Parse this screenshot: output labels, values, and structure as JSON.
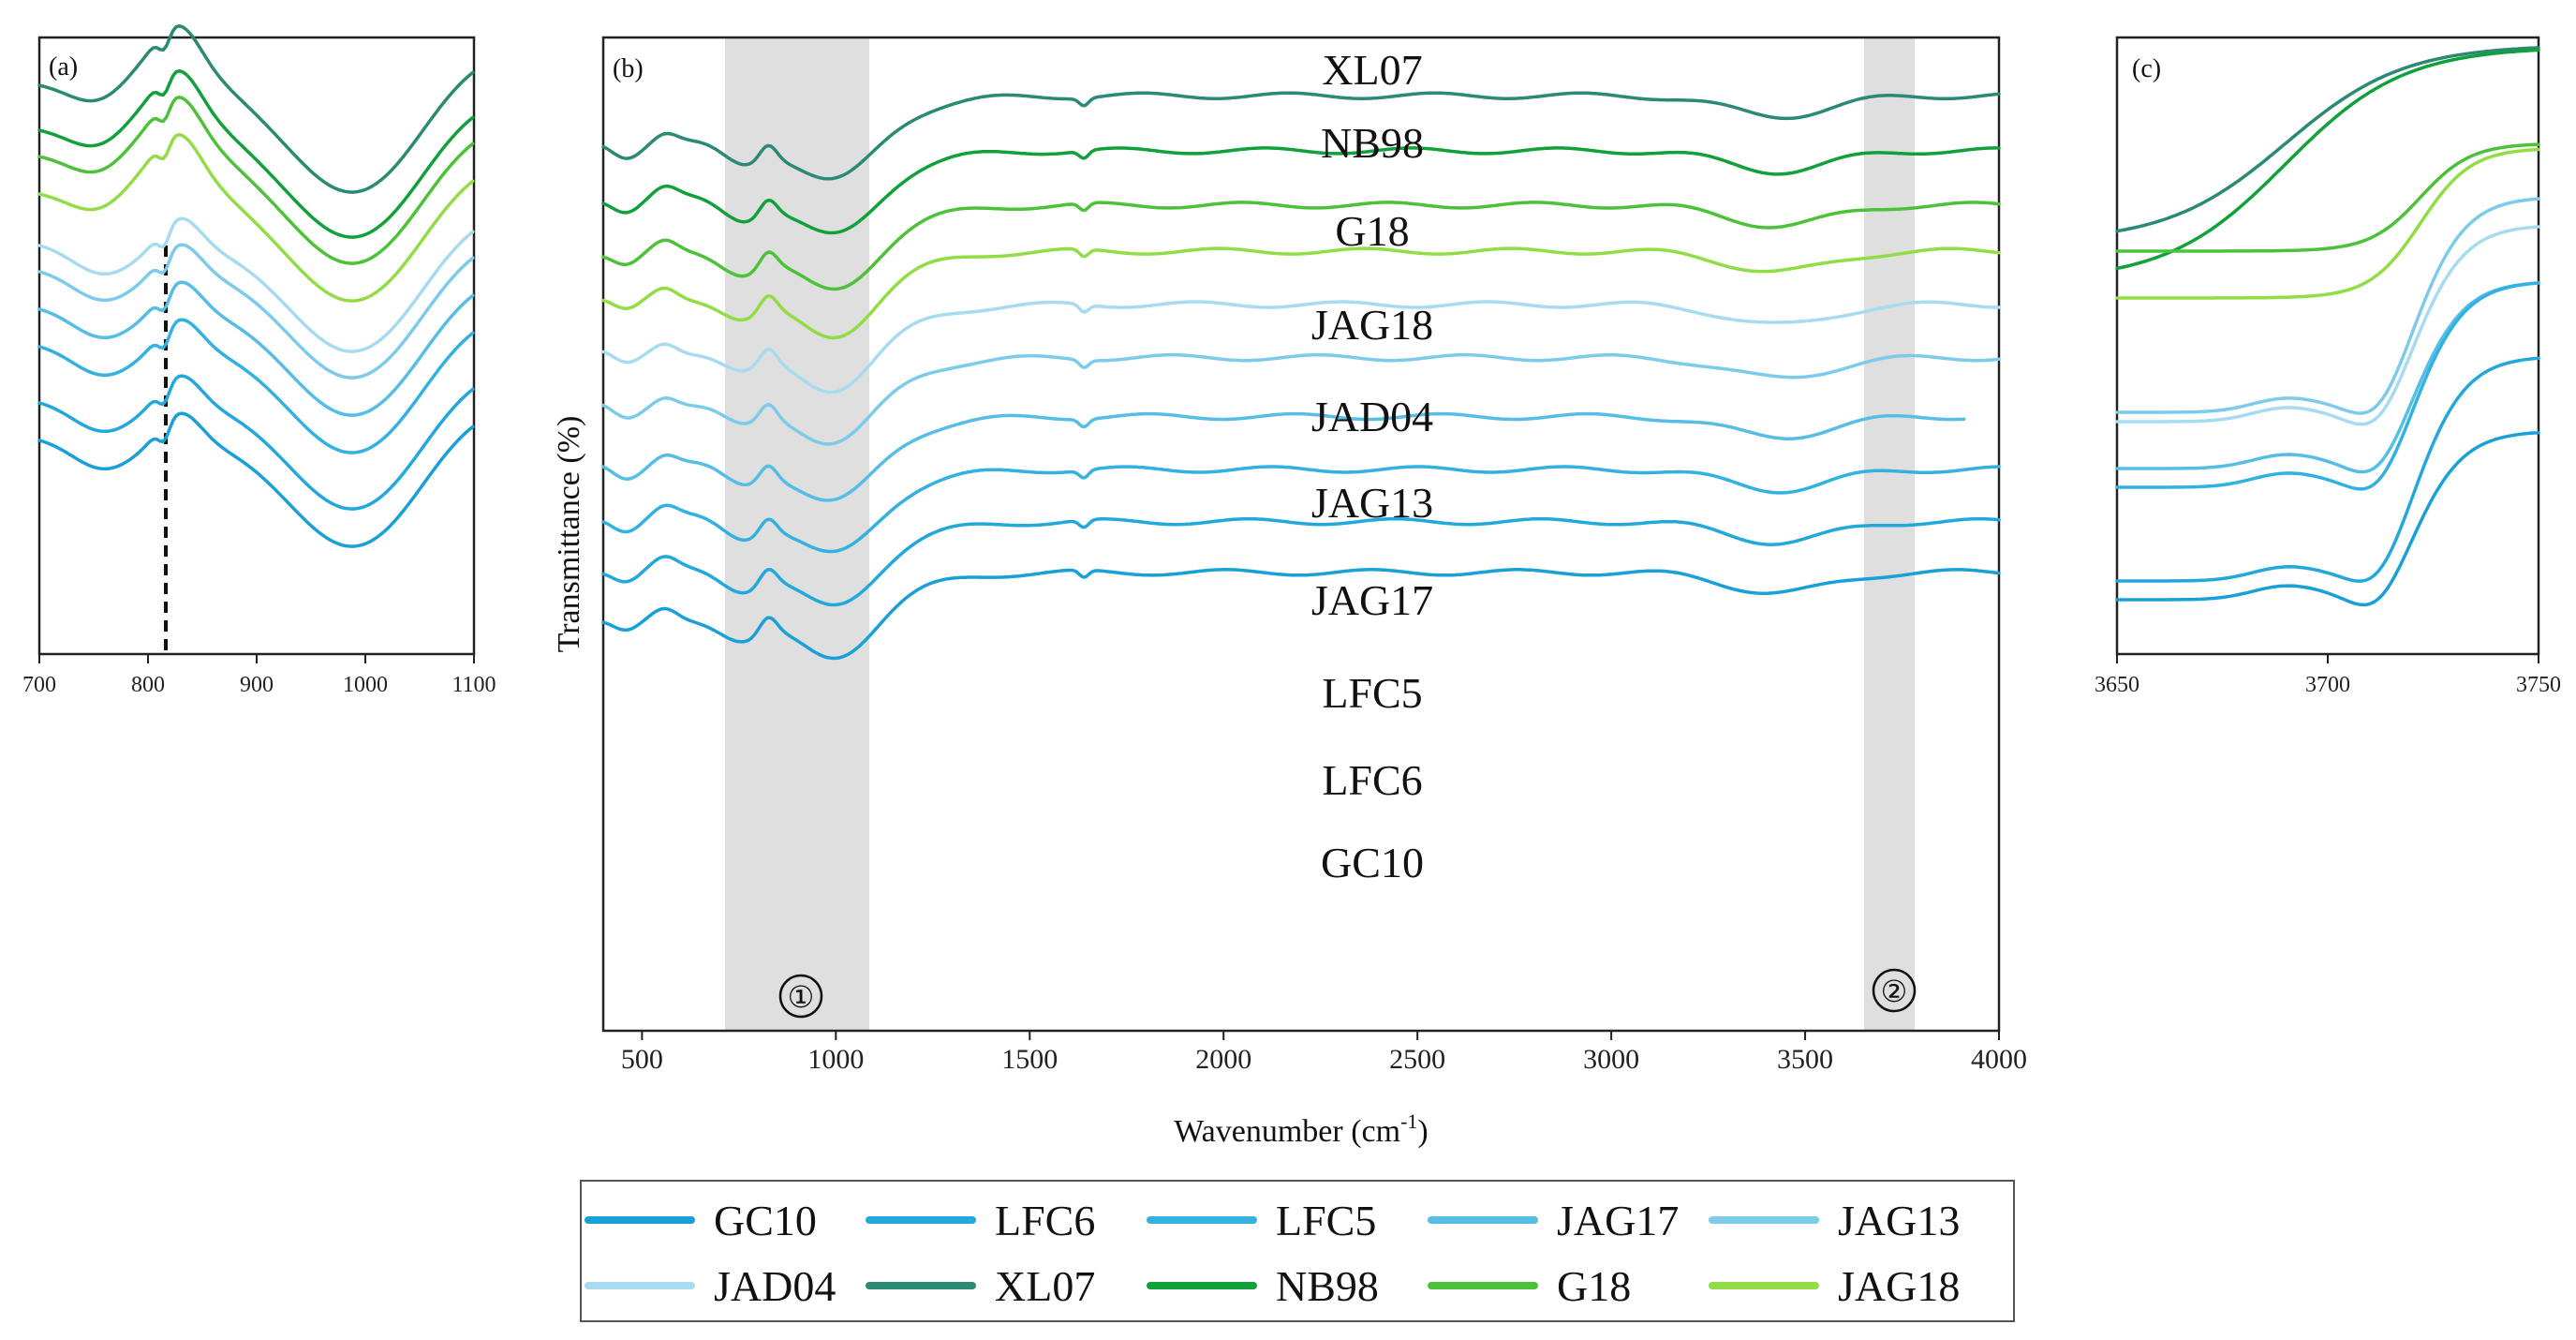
{
  "chart_data": [
    {
      "type": "line",
      "panel": "(a)",
      "x_range": [
        700,
        1100
      ],
      "x_ticks": [
        "700",
        "800",
        "900",
        "1000",
        "1100"
      ],
      "series_order_top_to_bottom": [
        "XL07",
        "NB98",
        "G18",
        "JAG18",
        "JAD04",
        "JAG13",
        "JAG17",
        "LFC5",
        "LFC6",
        "GC10"
      ],
      "annotation": "dashed vertical line at ~815 cm-1"
    },
    {
      "type": "line",
      "panel": "(b)",
      "title": "",
      "xlabel": "Wavenumber (cm",
      "xlabel_sup": "-1",
      "xlabel_end": ")",
      "ylabel": "Transmittance (%)",
      "x_range": [
        400,
        4000
      ],
      "x_ticks": [
        "500",
        "1000",
        "1500",
        "2000",
        "2500",
        "3000",
        "3500",
        "4000"
      ],
      "series_labels_top_to_bottom": [
        "XL07",
        "NB98",
        "G18",
        "JAG18",
        "JAD04",
        "JAG13",
        "JAG17",
        "LFC5",
        "LFC6",
        "GC10"
      ],
      "shaded_regions": [
        {
          "label": "①",
          "from": 710,
          "to": 1085
        },
        {
          "label": "②",
          "from": 3645,
          "to": 3775
        }
      ],
      "features": {
        "main_minimum_cm-1": 1000,
        "secondary_peak_cm-1": 820,
        "broad_minimum_cm-1": 3430,
        "small_dip_cm-1": 1640
      }
    },
    {
      "type": "line",
      "panel": "(c)",
      "x_range": [
        3650,
        3750
      ],
      "x_ticks": [
        "3650",
        "3700",
        "3750"
      ],
      "series_order_top_to_bottom": [
        "XL07",
        "NB98",
        "G18",
        "JAG18",
        "JAD04",
        "JAG13",
        "JAG17",
        "LFC5",
        "LFC6",
        "GC10"
      ]
    }
  ],
  "legend": [
    {
      "name": "GC10",
      "color": "#1aa0d8"
    },
    {
      "name": "LFC6",
      "color": "#23a8dc"
    },
    {
      "name": "LFC5",
      "color": "#33b1e0"
    },
    {
      "name": "JAG17",
      "color": "#56bde4"
    },
    {
      "name": "JAG13",
      "color": "#7dcbea"
    },
    {
      "name": "JAD04",
      "color": "#a6dbf0"
    },
    {
      "name": "XL07",
      "color": "#2a8a74"
    },
    {
      "name": "NB98",
      "color": "#10a13a"
    },
    {
      "name": "G18",
      "color": "#4cc238"
    },
    {
      "name": "JAG18",
      "color": "#92dd45"
    }
  ],
  "panel_labels": {
    "a": "(a)",
    "b": "(b)",
    "c": "(c)"
  },
  "region_labels": {
    "r1": "①",
    "r2": "②"
  }
}
